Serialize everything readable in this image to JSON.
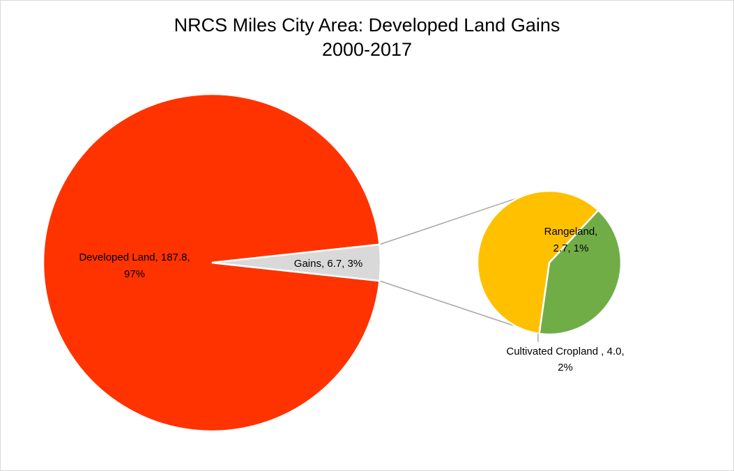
{
  "chart_data": {
    "type": "pie",
    "subtype": "pie-of-pie",
    "title": "NRCS Miles City Area: Developed Land Gains",
    "subtitle": "2000-2017",
    "primary": {
      "slices": [
        {
          "label": "Developed Land",
          "value": 187.8,
          "percent": "97%",
          "color": "#ff3300"
        },
        {
          "label": "Gains",
          "value": 6.7,
          "percent": "3%",
          "color": "#d9d9d9"
        }
      ]
    },
    "secondary": {
      "slices": [
        {
          "label": "Rangeland",
          "value": 2.7,
          "percent": "1%",
          "color": "#70ad47"
        },
        {
          "label": "Cultivated Cropland ",
          "value": 4.0,
          "percent": "2%",
          "color": "#ffc000"
        }
      ]
    },
    "data_labels": {
      "developed": {
        "line1": "Developed Land, 187.8,",
        "line2": "97%"
      },
      "gains": {
        "line1": "Gains, 6.7, 3%"
      },
      "rangeland": {
        "line1": "Rangeland,",
        "line2": "2.7, 1%"
      },
      "cropland": {
        "line1": "Cultivated Cropland , 4.0,",
        "line2": "2%"
      }
    },
    "connector_color": "#a6a6a6",
    "legend": "none"
  }
}
